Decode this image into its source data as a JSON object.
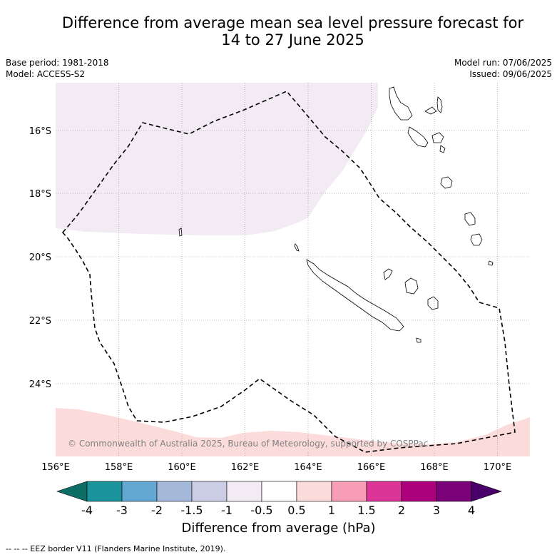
{
  "title_line1": "Difference from average mean sea level pressure forecast for",
  "title_line2": "14 to 27 June 2025",
  "meta": {
    "base_period": "Base period: 1981-2018",
    "model": "Model: ACCESS-S2",
    "model_run": "Model run: 07/06/2025",
    "issued": "Issued: 09/06/2025"
  },
  "copyright": "© Commonwealth of Australia 2025, Bureau of Meteorology, supported by COSPPac",
  "axes": {
    "lat_labels": [
      "16°S",
      "18°S",
      "20°S",
      "22°S",
      "24°S"
    ],
    "lon_labels": [
      "156°E",
      "158°E",
      "160°E",
      "162°E",
      "164°E",
      "166°E",
      "168°E",
      "170°E"
    ]
  },
  "colorbar": {
    "label": "Difference from average (hPa)",
    "ticks": [
      "-4",
      "-3",
      "-2",
      "-1.5",
      "-1",
      "-0.5",
      "0.5",
      "1",
      "1.5",
      "2",
      "3",
      "4"
    ],
    "colors": [
      "#0d6e66",
      "#1b939b",
      "#63a8d2",
      "#a4b8da",
      "#cacde4",
      "#f2ebf4",
      "#ffffff",
      "#fcdcdb",
      "#f79db8",
      "#dd3497",
      "#ae017e",
      "#7a0177",
      "#49006a"
    ]
  },
  "footer": "--  --  -- EEZ border V11 (Flanders Marine Institute, 2019).",
  "colors": {
    "negative_shading": "#f2ebf4",
    "positive_shading": "#fcdcdb",
    "eez_line": "#000000",
    "grid": "#888888"
  }
}
